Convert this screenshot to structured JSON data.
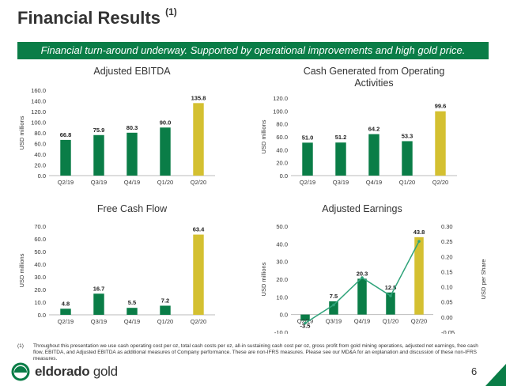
{
  "page": {
    "title": "Financial Results",
    "title_sup": "(1)",
    "banner": "Financial turn-around underway. Supported by operational improvements and high gold price.",
    "footnote_num": "(1)",
    "footnote": "Throughout this presentation we use cash operating cost per oz, total cash costs per oz, all-in sustaining cash cost per oz, gross profit from gold mining operations, adjusted net earnings, free cash flow, EBITDA, and Adjusted EBITDA as additional measures of Company performance. These are non-IFRS measures. Please see our MD&A for an explanation and discussion of these non-IFRS measures.",
    "logo_bold": "eldorado",
    "logo_light": " gold",
    "page_number": "6"
  },
  "colors": {
    "green": "#0a7d47",
    "gold": "#d4c031",
    "banner": "#0a7d47"
  },
  "chart_data": [
    {
      "type": "bar",
      "title": "Adjusted EBITDA",
      "ylabel": "USD millions",
      "categories": [
        "Q2/19",
        "Q3/19",
        "Q4/19",
        "Q1/20",
        "Q2/20"
      ],
      "values": [
        66.8,
        75.9,
        80.3,
        90.0,
        135.8
      ],
      "value_labels": [
        "66.8",
        "75.9",
        "80.3",
        "90.0",
        "135.8"
      ],
      "ylim": [
        0,
        160
      ],
      "yticks": [
        "0.0",
        "20.0",
        "40.0",
        "60.0",
        "80.0",
        "100.0",
        "120.0",
        "140.0",
        "160.0"
      ],
      "highlight_index": 4
    },
    {
      "type": "bar",
      "title": "Cash Generated from Operating Activities",
      "ylabel": "USD millions",
      "categories": [
        "Q2/19",
        "Q3/19",
        "Q4/19",
        "Q1/20",
        "Q2/20"
      ],
      "values": [
        51.0,
        51.2,
        64.2,
        53.3,
        99.6
      ],
      "value_labels": [
        "51.0",
        "51.2",
        "64.2",
        "53.3",
        "99.6"
      ],
      "ylim": [
        0,
        120
      ],
      "yticks": [
        "0.0",
        "20.0",
        "40.0",
        "60.0",
        "80.0",
        "100.0",
        "120.0"
      ],
      "highlight_index": 4
    },
    {
      "type": "bar",
      "title": "Free Cash Flow",
      "ylabel": "USD millions",
      "categories": [
        "Q2/19",
        "Q3/19",
        "Q4/19",
        "Q1/20",
        "Q2/20"
      ],
      "values": [
        4.8,
        16.7,
        5.5,
        7.2,
        63.4
      ],
      "value_labels": [
        "4.8",
        "16.7",
        "5.5",
        "7.2",
        "63.4"
      ],
      "ylim": [
        0,
        70
      ],
      "yticks": [
        "0.0",
        "10.0",
        "20.0",
        "30.0",
        "40.0",
        "50.0",
        "60.0",
        "70.0"
      ],
      "highlight_index": 4
    },
    {
      "type": "bar",
      "title": "Adjusted Earnings",
      "ylabel": "USD millions",
      "y2label": "USD per Share",
      "categories": [
        "Q2/19",
        "Q3/19",
        "Q4/19",
        "Q1/20",
        "Q2/20"
      ],
      "values": [
        -3.5,
        7.5,
        20.3,
        12.5,
        43.8
      ],
      "value_labels": [
        "-3.5",
        "7.5",
        "20.3",
        "12.5",
        "43.8"
      ],
      "ylim": [
        -10,
        50
      ],
      "yticks": [
        "-10.0",
        "0.0",
        "10.0",
        "20.0",
        "30.0",
        "40.0",
        "50.0"
      ],
      "y2lim": [
        -0.05,
        0.3
      ],
      "y2ticks": [
        "-0.05",
        "0.00",
        "0.05",
        "0.10",
        "0.15",
        "0.20",
        "0.25",
        "0.30"
      ],
      "line_values": [
        -0.02,
        0.04,
        0.13,
        0.07,
        0.25
      ],
      "highlight_index": 4
    }
  ]
}
